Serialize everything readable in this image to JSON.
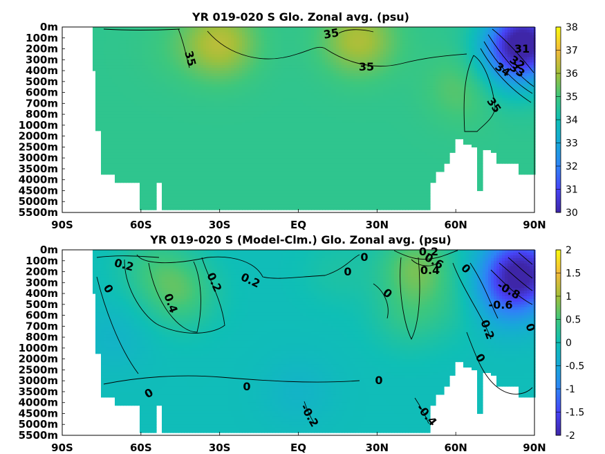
{
  "chart_data": [
    {
      "type": "heatmap",
      "title": "YR 019-020 S Glo. Zonal avg. (psu)",
      "x_ticks": [
        "90S",
        "60S",
        "30S",
        "EQ",
        "30N",
        "60N",
        "90N"
      ],
      "y_ticks": [
        "0m",
        "100m",
        "200m",
        "300m",
        "400m",
        "500m",
        "600m",
        "700m",
        "800m",
        "1000m",
        "2000m",
        "2500m",
        "3000m",
        "3500m",
        "4000m",
        "4500m",
        "5000m",
        "5500m"
      ],
      "colorbar": {
        "range": [
          30,
          38
        ],
        "ticks": [
          "30",
          "31",
          "32",
          "33",
          "34",
          "35",
          "36",
          "37",
          "38"
        ]
      },
      "contour_labels": [
        "35",
        "35",
        "35",
        "35",
        "31",
        "32",
        "33",
        "34"
      ],
      "background_value": 34.7,
      "features": [
        {
          "lat": -30,
          "depth_index": 1.5,
          "value": 36.3
        },
        {
          "lat": 23,
          "depth_index": 1.2,
          "value": 36.2
        },
        {
          "lat": 63,
          "depth_index": 5.5,
          "value": 35.4
        },
        {
          "lat": -48,
          "depth_index": 2.0,
          "value": 34.9
        },
        {
          "lat": 87,
          "depth_index": 1.0,
          "value": 31.0
        },
        {
          "lat": 82,
          "depth_index": 2.5,
          "value": 32.6
        },
        {
          "lat": 80,
          "depth_index": 4.5,
          "value": 34.2
        }
      ]
    },
    {
      "type": "heatmap",
      "title": "YR 019-020 S (Model-Clm.) Glo. Zonal avg. (psu)",
      "x_ticks": [
        "90S",
        "60S",
        "30S",
        "EQ",
        "30N",
        "60N",
        "90N"
      ],
      "y_ticks": [
        "0m",
        "100m",
        "200m",
        "300m",
        "400m",
        "500m",
        "600m",
        "700m",
        "800m",
        "1000m",
        "2000m",
        "2500m",
        "3000m",
        "3500m",
        "4000m",
        "4500m",
        "5000m",
        "5500m"
      ],
      "colorbar": {
        "range": [
          -2,
          2
        ],
        "ticks": [
          "-2",
          "-1.5",
          "-1",
          "-0.5",
          "0",
          "0.5",
          "1",
          "1.5",
          "2"
        ]
      },
      "contour_labels": [
        "0.2",
        "0",
        "0.4",
        "0.2",
        "0.2",
        "0",
        "0",
        "0",
        "0.2",
        "0.4",
        "0.6",
        "0",
        "0.2",
        "0",
        "0",
        "0",
        "0",
        "0",
        "-0.2",
        "-0.4",
        "-0.6",
        "-0.8"
      ],
      "background_value": -0.05,
      "features": [
        {
          "lat": -45,
          "depth_index": 4.0,
          "value": 0.55
        },
        {
          "lat": -55,
          "depth_index": 1.5,
          "value": 0.35
        },
        {
          "lat": 45,
          "depth_index": 1.5,
          "value": 0.75
        },
        {
          "lat": 42,
          "depth_index": 6.0,
          "value": 0.35
        },
        {
          "lat": 15,
          "depth_index": 2.0,
          "value": 0.15
        },
        {
          "lat": 62,
          "depth_index": 5.0,
          "value": 0.2
        },
        {
          "lat": 85,
          "depth_index": 2.0,
          "value": -2.0
        },
        {
          "lat": 78,
          "depth_index": 4.5,
          "value": -0.7
        },
        {
          "lat": -70,
          "depth_index": 8.0,
          "value": -0.25
        },
        {
          "lat": 0,
          "depth_index": 13.0,
          "value": -0.25
        }
      ]
    }
  ]
}
